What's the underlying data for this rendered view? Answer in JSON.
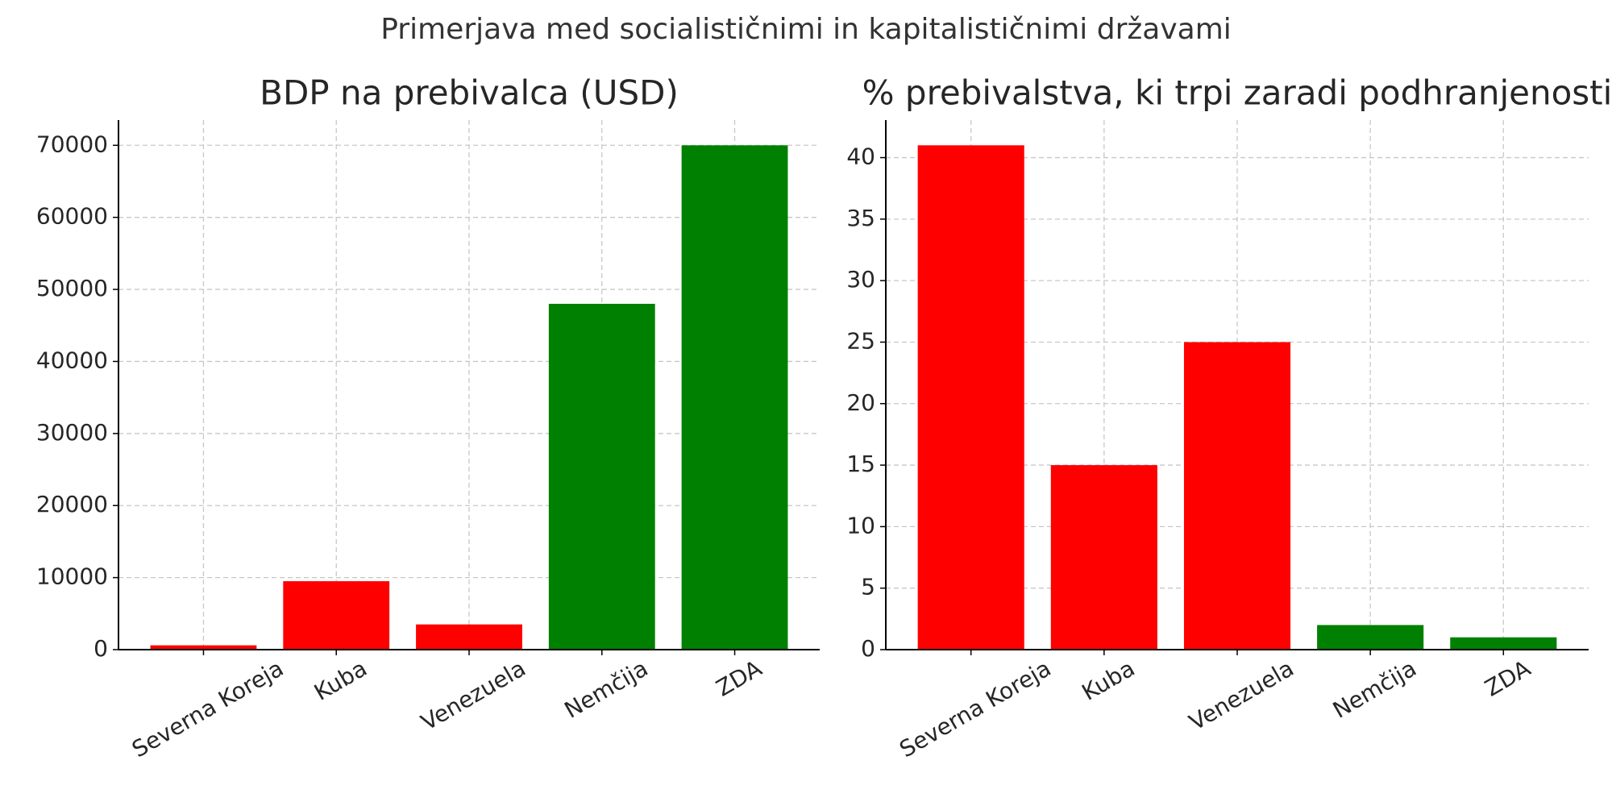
{
  "title": "Primerjava med socialističnimi in kapitalističnimi državami",
  "chart_data": [
    {
      "type": "bar",
      "title": "BDP na prebivalca (USD)",
      "categories": [
        "Severna Koreja",
        "Kuba",
        "Venezuela",
        "Nemčija",
        "ZDA"
      ],
      "values": [
        600,
        9500,
        3500,
        48000,
        70000
      ],
      "colors": [
        "#ff0000",
        "#ff0000",
        "#ff0000",
        "#008000",
        "#008000"
      ],
      "ylim": [
        0,
        73500
      ],
      "yticks": [
        0,
        10000,
        20000,
        30000,
        40000,
        50000,
        60000,
        70000
      ],
      "grid": true
    },
    {
      "type": "bar",
      "title": "% prebivalstva, ki trpi zaradi podhranjenosti",
      "categories": [
        "Severna Koreja",
        "Kuba",
        "Venezuela",
        "Nemčija",
        "ZDA"
      ],
      "values": [
        41,
        15,
        25,
        2,
        1
      ],
      "colors": [
        "#ff0000",
        "#ff0000",
        "#ff0000",
        "#008000",
        "#008000"
      ],
      "ylim": [
        0,
        43.05
      ],
      "yticks": [
        0,
        5,
        10,
        15,
        20,
        25,
        30,
        35,
        40
      ],
      "grid": true
    }
  ]
}
